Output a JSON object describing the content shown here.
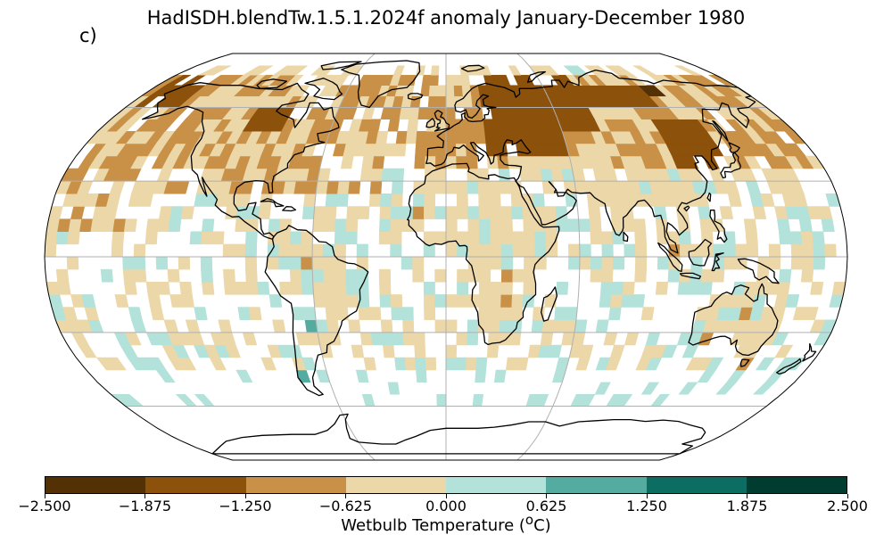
{
  "title": "HadISDH.blendTw.1.5.1.2024f anomaly January-December 1980",
  "panel_label": "c)",
  "colorbar": {
    "title": "Wetbulb Temperature (",
    "title_sup": "o",
    "title_end": "C)",
    "ticks": [
      "−2.500",
      "−1.875",
      "−1.250",
      "−0.625",
      "0.000",
      "0.625",
      "1.250",
      "1.875",
      "2.500"
    ],
    "colors": [
      "#543005",
      "#8c510a",
      "#c99147",
      "#ecd7a8",
      "#b2e2d9",
      "#54ab9f",
      "#0c6e62",
      "#003c30"
    ]
  },
  "map": {
    "projection": "Robinson",
    "gridlines": true,
    "coastlines": true,
    "grid_resolution_deg": 5
  }
}
